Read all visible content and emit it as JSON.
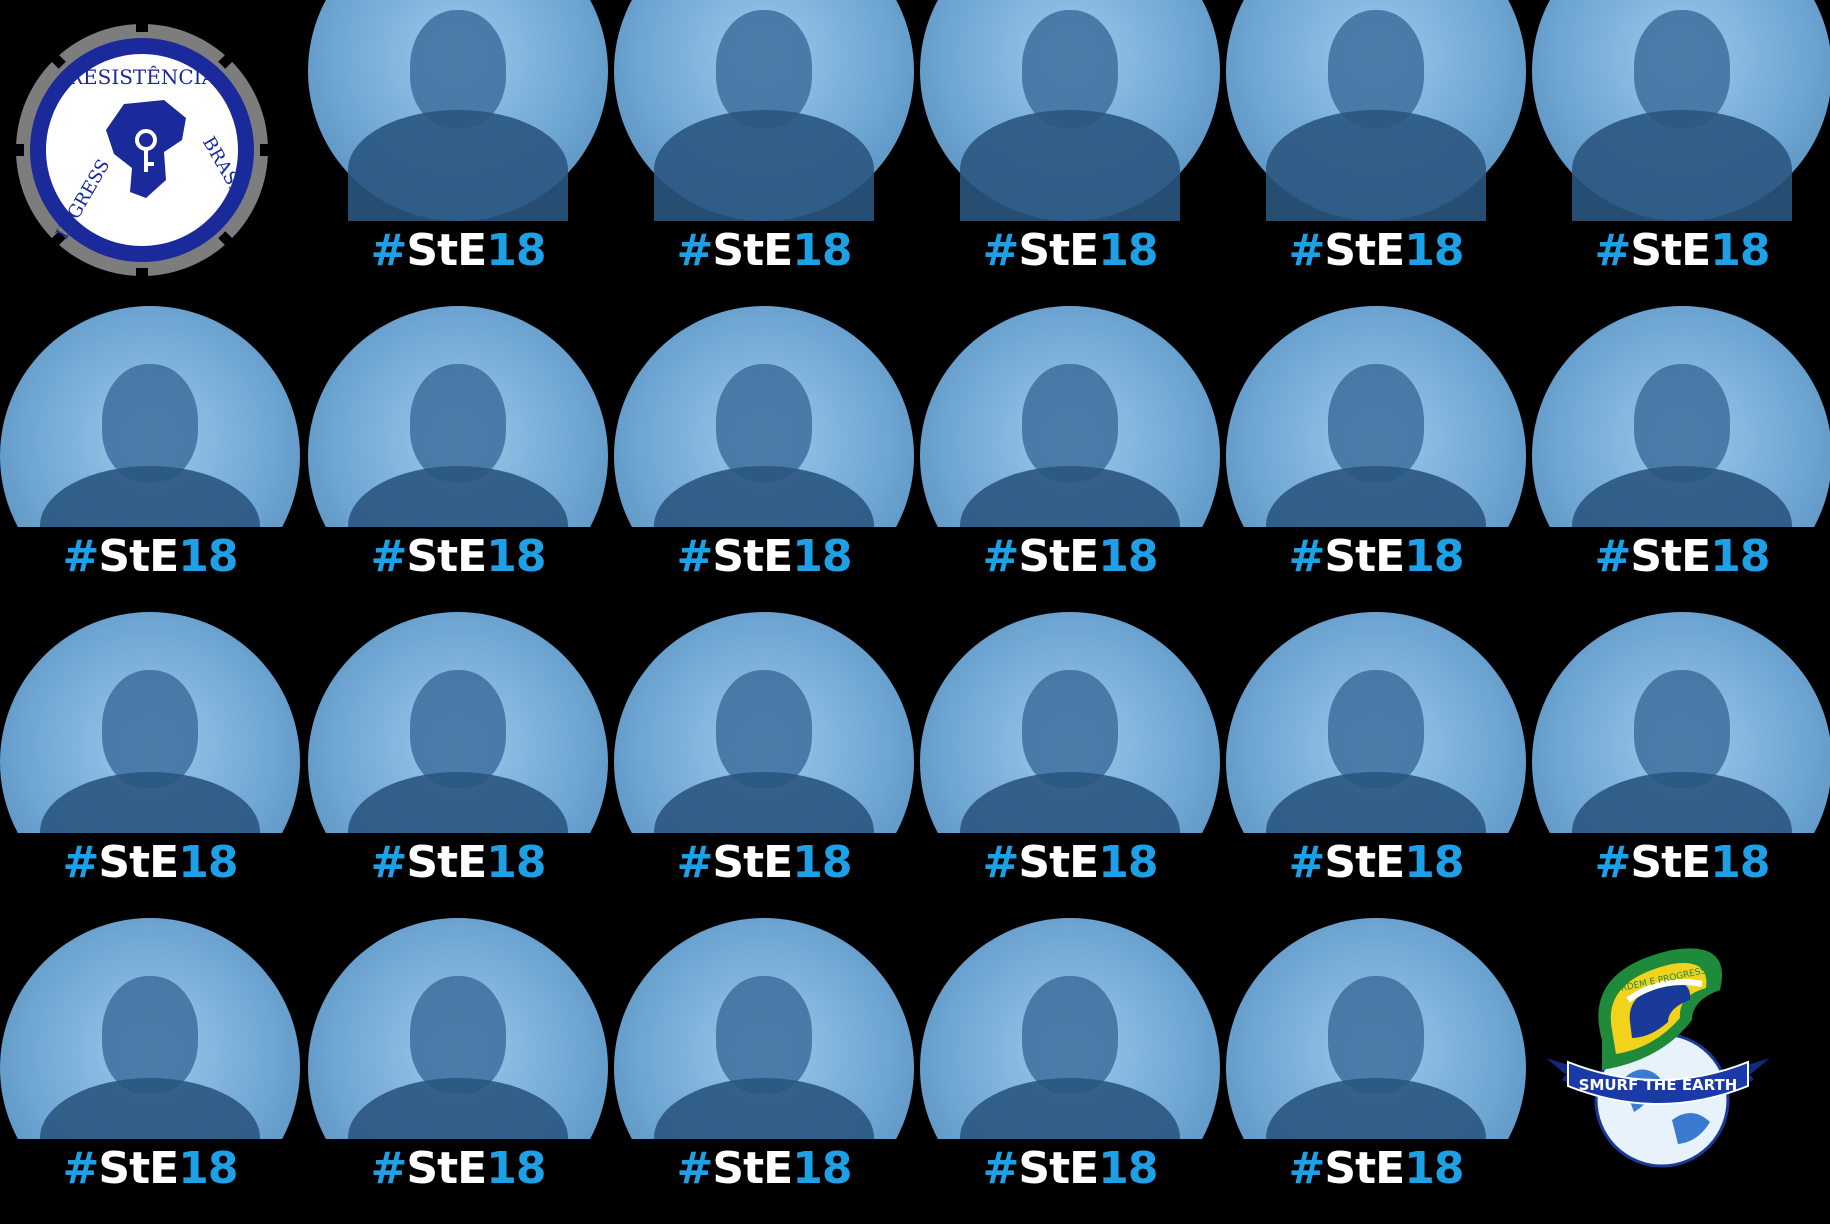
{
  "tag": {
    "hash": "#",
    "ste": "StE",
    "num": "18"
  },
  "logo_resistencia": {
    "top_text": "RESISTÊNCIA",
    "right_text": "BRASIL",
    "bottom_text": "INGRESS",
    "colors": {
      "ring": "#1a2a9a",
      "cog": "#8a8a8a",
      "inner": "#ffffff"
    }
  },
  "logo_smurf": {
    "ribbon_text": "SMURF THE EARTH",
    "band_text": "ORDEM E PROGRESSO",
    "colors": {
      "green": "#1f8a3a",
      "yellow": "#f2d21a",
      "blue": "#1a3a9a",
      "ribbon": "#1a3aa8"
    }
  },
  "accent_color": "#1ea0e6"
}
